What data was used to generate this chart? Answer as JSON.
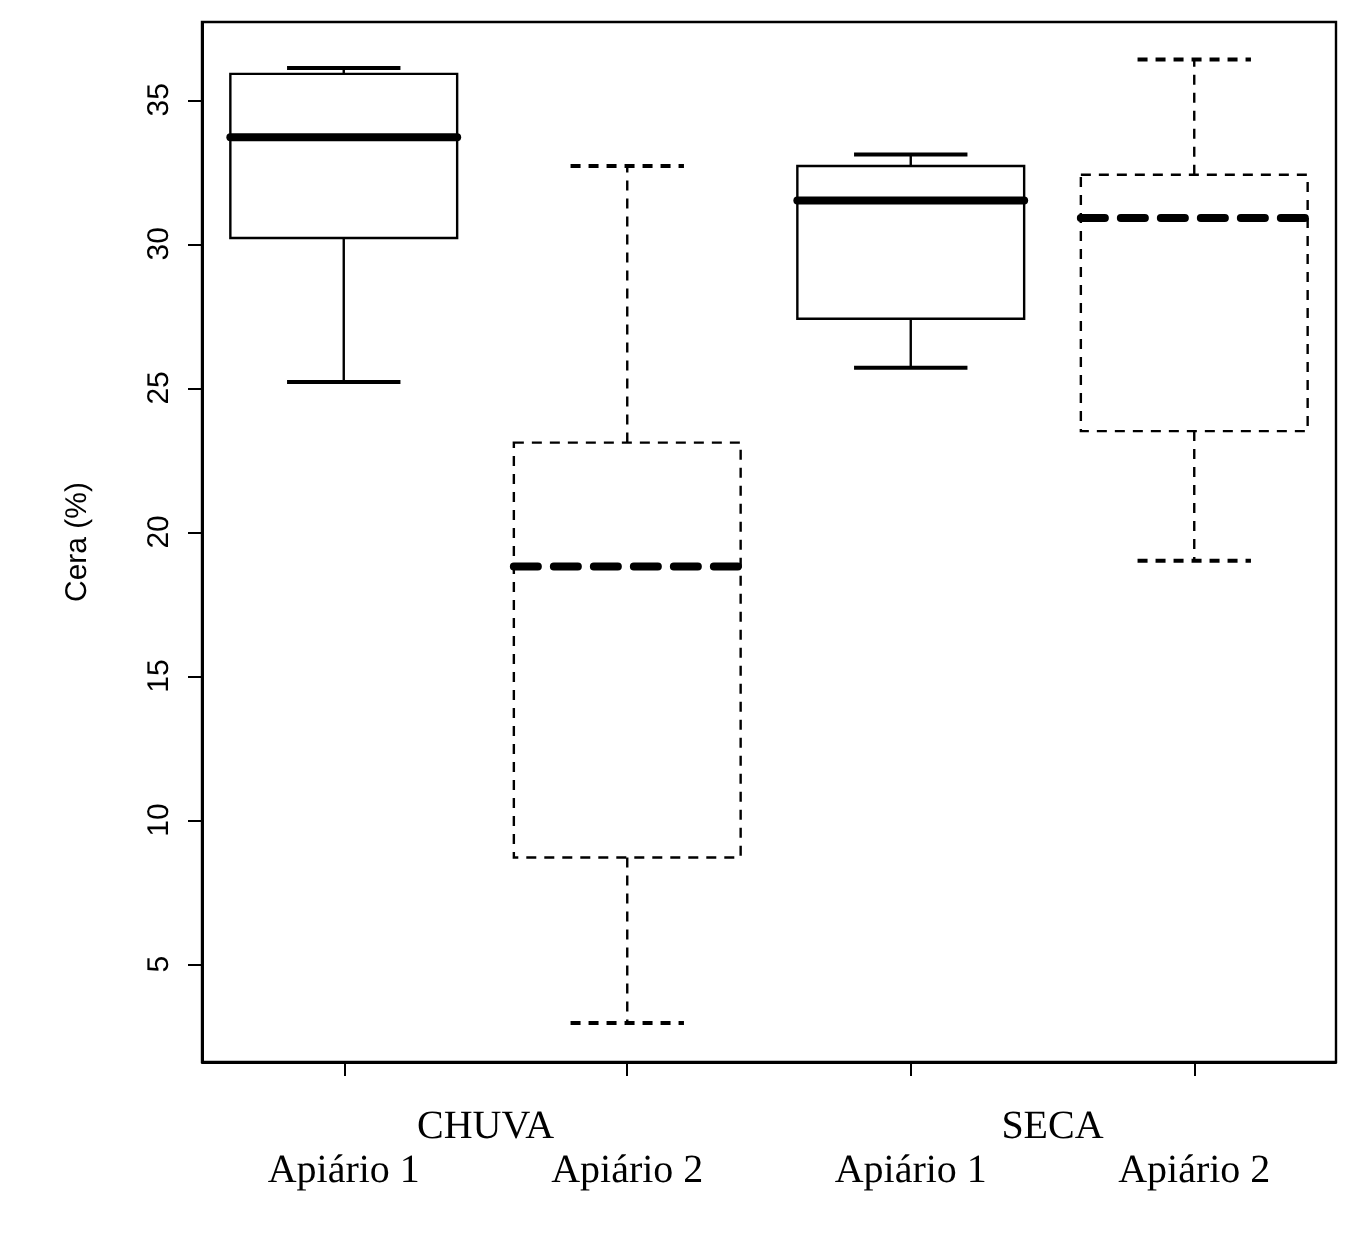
{
  "chart_data": {
    "type": "box",
    "ylabel": "Cera (%)",
    "categories": [
      "Apiário 1",
      "Apiário 2",
      "Apiário 1",
      "Apiário 2"
    ],
    "annotations": [
      "CHUVA",
      "SECA"
    ],
    "ylim": [
      1.6,
      37.7
    ],
    "yticks": [
      5,
      10,
      15,
      20,
      25,
      30,
      35
    ],
    "grid": false,
    "series": [
      {
        "color": "#000000",
        "line_style": "solid",
        "boxes": [
          {
            "low": 25.2,
            "q1": 30.2,
            "median": 33.7,
            "q3": 35.9,
            "high": 36.1
          },
          null,
          {
            "low": 25.7,
            "q1": 27.4,
            "median": 31.5,
            "q3": 32.7,
            "high": 33.1
          },
          null
        ]
      },
      {
        "color": "#000000",
        "line_style": "dashed",
        "boxes": [
          null,
          {
            "low": 2.95,
            "q1": 8.7,
            "median": 18.8,
            "q3": 23.1,
            "high": 32.7
          },
          null,
          {
            "low": 19.0,
            "q1": 23.5,
            "median": 30.9,
            "q3": 32.4,
            "high": 36.4
          }
        ]
      }
    ]
  }
}
